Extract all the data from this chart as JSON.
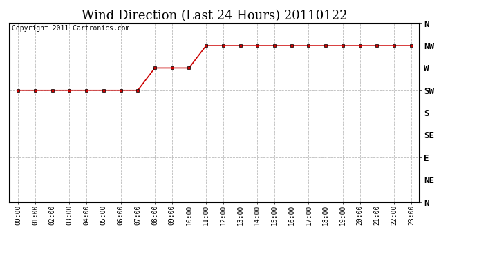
{
  "title": "Wind Direction (Last 24 Hours) 20110122",
  "copyright_text": "Copyright 2011 Cartronics.com",
  "background_color": "#ffffff",
  "plot_background_color": "#ffffff",
  "grid_color": "#bbbbbb",
  "line_color": "#cc0000",
  "marker_color": "#cc0000",
  "x_labels": [
    "00:00",
    "01:00",
    "02:00",
    "03:00",
    "04:00",
    "05:00",
    "06:00",
    "07:00",
    "08:00",
    "09:00",
    "10:00",
    "11:00",
    "12:00",
    "13:00",
    "14:00",
    "15:00",
    "16:00",
    "17:00",
    "18:00",
    "19:00",
    "20:00",
    "21:00",
    "22:00",
    "23:00"
  ],
  "y_labels_top_to_bottom": [
    "N",
    "NW",
    "W",
    "SW",
    "S",
    "SE",
    "E",
    "NE",
    "N"
  ],
  "data_y": [
    5,
    5,
    5,
    5,
    5,
    5,
    5,
    5,
    6,
    6,
    6,
    7,
    7,
    7,
    7,
    7,
    7,
    7,
    7,
    7,
    7,
    7,
    7,
    7
  ],
  "title_fontsize": 13,
  "copyright_fontsize": 7,
  "tick_fontsize": 7,
  "ytick_fontsize": 9
}
